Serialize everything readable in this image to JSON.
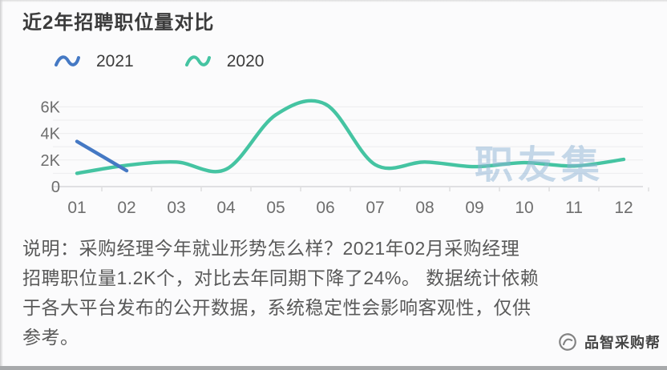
{
  "page": {
    "title": "近2年招聘职位量对比",
    "watermark": "职友集",
    "description_lines": [
      "说明：采购经理今年就业形势怎么样？2021年02月采购经理",
      "招聘职位量1.2K个，对比去年同期下降了24%。 数据统计依赖",
      "于各大平台发布的公开数据，系统稳定性会影响客观性，仅供",
      "参考。"
    ],
    "footer_brand": "品智采购帮"
  },
  "chart_data": {
    "type": "line",
    "title": "近2年招聘职位量对比",
    "categories": [
      "01",
      "02",
      "03",
      "04",
      "05",
      "06",
      "07",
      "08",
      "09",
      "10",
      "11",
      "12"
    ],
    "unit": "K",
    "yticks": [
      {
        "label": "0",
        "value": 0
      },
      {
        "label": "2K",
        "value": 2
      },
      {
        "label": "4K",
        "value": 4
      },
      {
        "label": "6K",
        "value": 6
      }
    ],
    "ylim": [
      0,
      6.6
    ],
    "grid": true,
    "legend_position": "top-left",
    "series": [
      {
        "name": "2021",
        "color": "#4579c4",
        "values": [
          3.4,
          1.2,
          null,
          null,
          null,
          null,
          null,
          null,
          null,
          null,
          null,
          null
        ]
      },
      {
        "name": "2020",
        "color": "#45c4a2",
        "values": [
          1.0,
          1.6,
          1.85,
          1.3,
          5.4,
          6.2,
          1.65,
          1.85,
          1.5,
          1.8,
          1.55,
          2.05
        ]
      }
    ],
    "watermark_color": "#8fb4d6",
    "axis_text_color": "#6e6e6e",
    "grid_color": "#ececee",
    "axis_line_color": "#d7d7d9"
  }
}
